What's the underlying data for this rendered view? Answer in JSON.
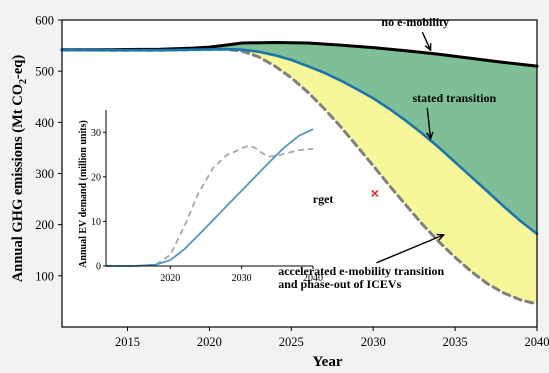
{
  "chart_data": [
    {
      "type": "area",
      "xlabel": "Year",
      "ylabel": "Annual GHG emissions (Mt CO",
      "ylabel_sub": "2",
      "ylabel_tail": "-eq)",
      "xlim": [
        2011,
        2040
      ],
      "ylim": [
        0,
        600
      ],
      "xticks": [
        2015,
        2020,
        2025,
        2030,
        2035,
        2040
      ],
      "yticks": [
        100,
        200,
        300,
        400,
        500,
        600
      ],
      "series": [
        {
          "name": "no e-mobility",
          "color": "#000000",
          "style": "solid",
          "points": [
            [
              2011,
              542
            ],
            [
              2014,
              542
            ],
            [
              2017,
              543
            ],
            [
              2019,
              545
            ],
            [
              2020,
              547
            ],
            [
              2021,
              551
            ],
            [
              2022,
              555
            ],
            [
              2024,
              556
            ],
            [
              2026,
              555
            ],
            [
              2028,
              551
            ],
            [
              2030,
              546
            ],
            [
              2032,
              540
            ],
            [
              2034,
              533
            ],
            [
              2036,
              525
            ],
            [
              2038,
              517
            ],
            [
              2040,
              510
            ]
          ]
        },
        {
          "name": "stated transition",
          "color": "#1a75ad",
          "style": "solid",
          "points": [
            [
              2011,
              542
            ],
            [
              2014,
              541
            ],
            [
              2017,
              541
            ],
            [
              2019,
              542
            ],
            [
              2021,
              543
            ],
            [
              2022,
              542
            ],
            [
              2023,
              538
            ],
            [
              2024,
              531
            ],
            [
              2025,
              522
            ],
            [
              2026,
              510
            ],
            [
              2027,
              497
            ],
            [
              2028,
              482
            ],
            [
              2029,
              465
            ],
            [
              2030,
              447
            ],
            [
              2031,
              426
            ],
            [
              2032,
              403
            ],
            [
              2033,
              378
            ],
            [
              2034,
              351
            ],
            [
              2035,
              322
            ],
            [
              2036,
              293
            ],
            [
              2037,
              264
            ],
            [
              2038,
              235
            ],
            [
              2039,
              207
            ],
            [
              2040,
              182
            ]
          ]
        },
        {
          "name": "accelerated e-mobility transition and phase-out of ICEVs",
          "color": "#808080",
          "style": "dashed",
          "points": [
            [
              2011,
              542
            ],
            [
              2014,
              541
            ],
            [
              2017,
              541
            ],
            [
              2019,
              542
            ],
            [
              2021,
              543
            ],
            [
              2022,
              539
            ],
            [
              2023,
              528
            ],
            [
              2024,
              510
            ],
            [
              2025,
              487
            ],
            [
              2026,
              459
            ],
            [
              2027,
              427
            ],
            [
              2028,
              392
            ],
            [
              2029,
              354
            ],
            [
              2030,
              315
            ],
            [
              2031,
              276
            ],
            [
              2032,
              238
            ],
            [
              2033,
              201
            ],
            [
              2034,
              167
            ],
            [
              2035,
              136
            ],
            [
              2036,
              108
            ],
            [
              2037,
              84
            ],
            [
              2038,
              66
            ],
            [
              2039,
              53
            ],
            [
              2040,
              45
            ]
          ]
        }
      ],
      "areas": [
        {
          "between": [
            "no e-mobility",
            "stated transition"
          ],
          "color": "#7fbf97"
        },
        {
          "between": [
            "stated transition",
            "accelerated e-mobility transition and phase-out of ICEVs"
          ],
          "color": "#f7f79a"
        }
      ],
      "annotations": [
        {
          "text": "no e-mobility",
          "at": [
            2030.5,
            588
          ],
          "arrow_to": [
            2033.5,
            541
          ]
        },
        {
          "text": "stated transition",
          "at": [
            2032.4,
            440
          ],
          "arrow_to": [
            2033.5,
            368
          ]
        },
        {
          "text": "target",
          "at": [
            2025.7,
            242
          ]
        },
        {
          "text": "accelerated e-mobility transition",
          "at": [
            2024.2,
            102
          ],
          "arrow_to": [
            2034.3,
            180
          ]
        },
        {
          "text": "and phase-out of ICEVs",
          "at": [
            2024.2,
            76
          ]
        }
      ],
      "markers": [
        {
          "name": "target",
          "x": 2030.1,
          "y": 261,
          "color": "#e03030"
        }
      ]
    },
    {
      "type": "line",
      "ylabel": "Annual EV demand (million units)",
      "xlim": [
        2011,
        2040
      ],
      "ylim": [
        0,
        35
      ],
      "xticks": [
        2020,
        2030,
        2040
      ],
      "yticks": [
        0,
        10,
        20,
        30
      ],
      "series": [
        {
          "name": "stated transition",
          "color": "#4f97c4",
          "style": "solid",
          "points": [
            [
              2011,
              0
            ],
            [
              2015,
              0
            ],
            [
              2018,
              0.3
            ],
            [
              2020,
              1.3
            ],
            [
              2022,
              3.8
            ],
            [
              2024,
              7
            ],
            [
              2026,
              10.3
            ],
            [
              2028,
              13.6
            ],
            [
              2030,
              16.9
            ],
            [
              2032,
              20.2
            ],
            [
              2034,
              23.5
            ],
            [
              2036,
              26.6
            ],
            [
              2038,
              29.2
            ],
            [
              2040,
              30.7
            ]
          ]
        },
        {
          "name": "accelerated e-mobility transition and phase-out of ICEVs",
          "color": "#a6a6a6",
          "style": "dashed",
          "points": [
            [
              2011,
              0
            ],
            [
              2015,
              0
            ],
            [
              2018,
              0.3
            ],
            [
              2020,
              2.5
            ],
            [
              2022,
              9
            ],
            [
              2024,
              16.5
            ],
            [
              2026,
              22
            ],
            [
              2028,
              25
            ],
            [
              2029,
              25.6
            ],
            [
              2030,
              26.4
            ],
            [
              2031,
              27
            ],
            [
              2032,
              26.4
            ],
            [
              2033,
              25.2
            ],
            [
              2034,
              24.6
            ],
            [
              2035,
              24.7
            ],
            [
              2036,
              25.2
            ],
            [
              2038,
              26
            ],
            [
              2040,
              26.3
            ]
          ]
        }
      ]
    }
  ]
}
